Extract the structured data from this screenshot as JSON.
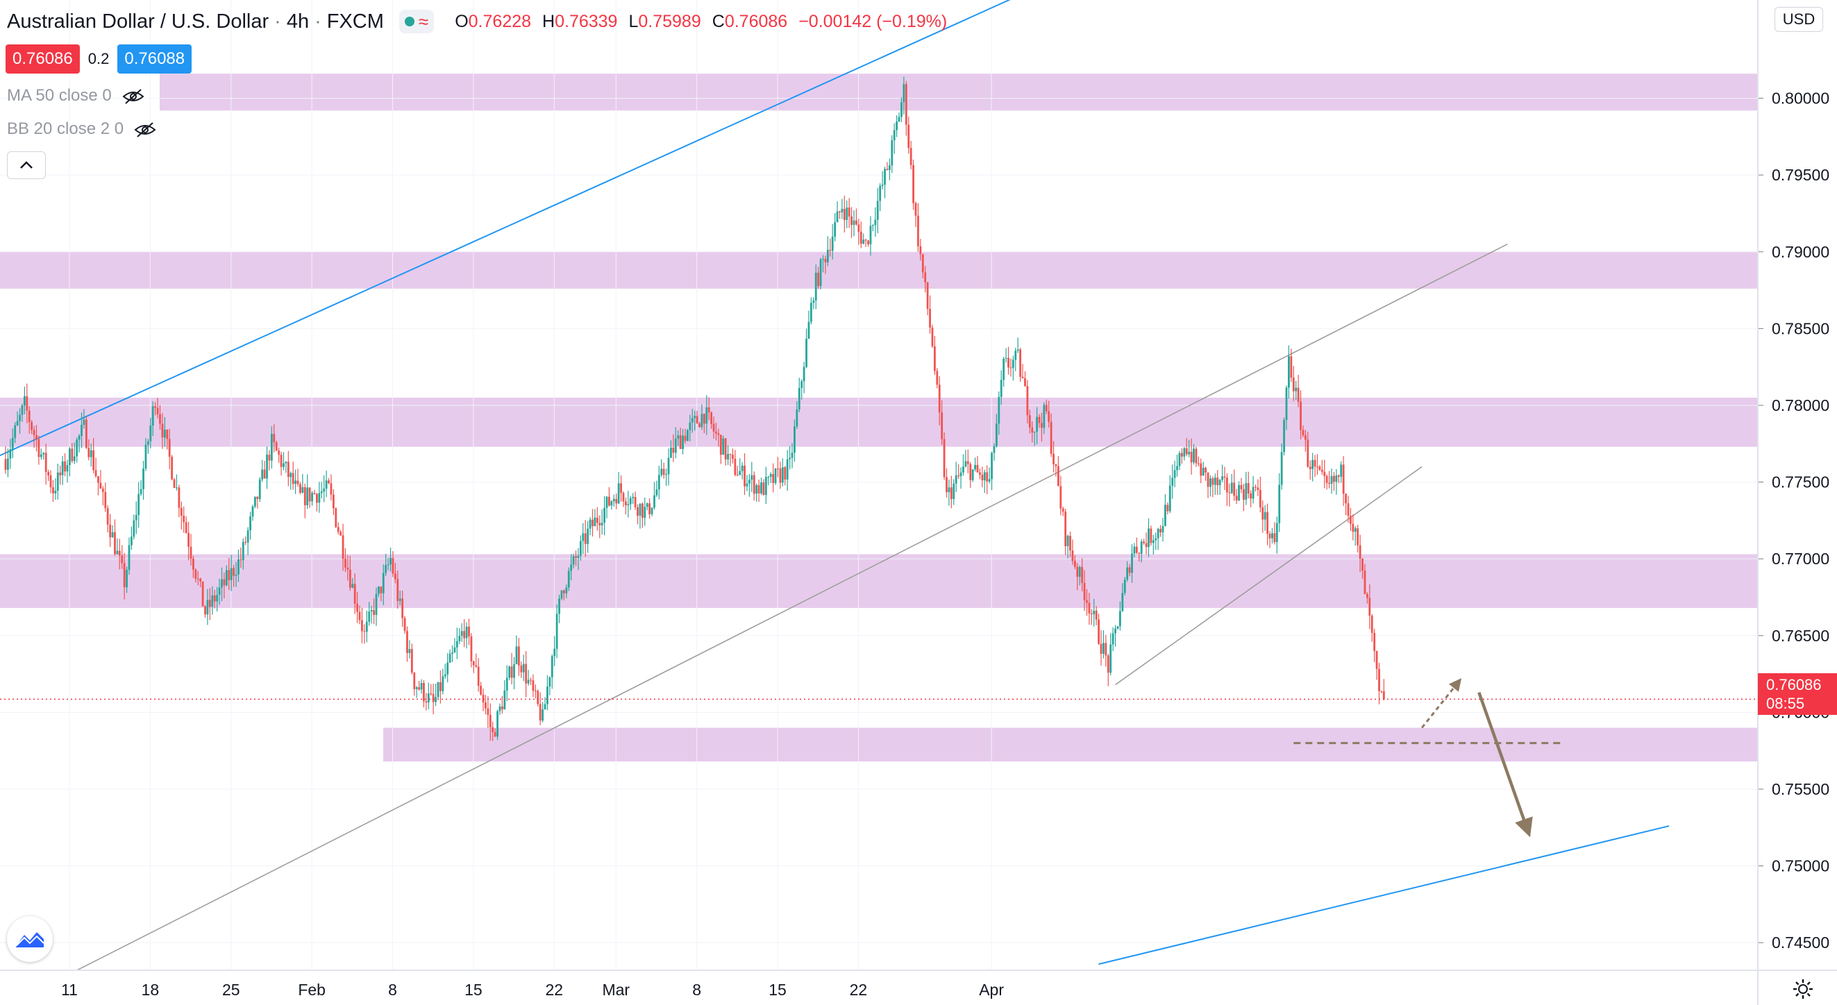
{
  "header": {
    "symbol": "Australian Dollar / U.S. Dollar",
    "interval": "4h",
    "source": "FXCM",
    "ohlc": [
      {
        "label": "O",
        "value": "0.76228"
      },
      {
        "label": "H",
        "value": "0.76339"
      },
      {
        "label": "L",
        "value": "0.75989"
      },
      {
        "label": "C",
        "value": "0.76086"
      }
    ],
    "change": "−0.00142 (−0.19%)"
  },
  "prices": {
    "sell": "0.76086",
    "spread": "0.2",
    "buy": "0.76088"
  },
  "indicators": [
    "MA 50 close 0",
    "BB 20 close 2 0"
  ],
  "currency": "USD",
  "last_price": {
    "value": "0.76086",
    "countdown": "08:55"
  },
  "colors": {
    "up": "#26a69a",
    "down": "#ef5350",
    "zone": "#e1bee7",
    "blue_line": "#2196f3",
    "channel": "#9e9e9e",
    "arrow": "#8d7a63"
  },
  "chart_data": {
    "type": "candlestick",
    "y_ticks": [
      "0.80000",
      "0.79500",
      "0.79000",
      "0.78500",
      "0.78000",
      "0.77500",
      "0.77000",
      "0.76500",
      "0.76000",
      "0.75500",
      "0.75000",
      "0.74500"
    ],
    "x_ticks": [
      "11",
      "18",
      "25",
      "Feb",
      "8",
      "15",
      "22",
      "Mar",
      "8",
      "15",
      "22",
      "Apr"
    ],
    "ylim": [
      0.7432,
      0.8064
    ],
    "anchors": [
      {
        "x": 0,
        "y": 0.7765
      },
      {
        "x": 8,
        "y": 0.78
      },
      {
        "x": 20,
        "y": 0.7745
      },
      {
        "x": 33,
        "y": 0.7785
      },
      {
        "x": 50,
        "y": 0.7685
      },
      {
        "x": 63,
        "y": 0.7805
      },
      {
        "x": 72,
        "y": 0.7745
      },
      {
        "x": 84,
        "y": 0.7665
      },
      {
        "x": 99,
        "y": 0.77
      },
      {
        "x": 112,
        "y": 0.7775
      },
      {
        "x": 124,
        "y": 0.774
      },
      {
        "x": 136,
        "y": 0.7745
      },
      {
        "x": 151,
        "y": 0.765
      },
      {
        "x": 162,
        "y": 0.77
      },
      {
        "x": 172,
        "y": 0.762
      },
      {
        "x": 180,
        "y": 0.7605
      },
      {
        "x": 193,
        "y": 0.7655
      },
      {
        "x": 205,
        "y": 0.7585
      },
      {
        "x": 215,
        "y": 0.764
      },
      {
        "x": 226,
        "y": 0.7595
      },
      {
        "x": 234,
        "y": 0.768
      },
      {
        "x": 246,
        "y": 0.772
      },
      {
        "x": 258,
        "y": 0.7745
      },
      {
        "x": 270,
        "y": 0.773
      },
      {
        "x": 282,
        "y": 0.7775
      },
      {
        "x": 294,
        "y": 0.7795
      },
      {
        "x": 306,
        "y": 0.776
      },
      {
        "x": 318,
        "y": 0.7745
      },
      {
        "x": 330,
        "y": 0.776
      },
      {
        "x": 340,
        "y": 0.7875
      },
      {
        "x": 352,
        "y": 0.793
      },
      {
        "x": 362,
        "y": 0.7905
      },
      {
        "x": 372,
        "y": 0.796
      },
      {
        "x": 378,
        "y": 0.8005
      },
      {
        "x": 383,
        "y": 0.792
      },
      {
        "x": 390,
        "y": 0.784
      },
      {
        "x": 396,
        "y": 0.774
      },
      {
        "x": 404,
        "y": 0.776
      },
      {
        "x": 414,
        "y": 0.775
      },
      {
        "x": 420,
        "y": 0.7825
      },
      {
        "x": 426,
        "y": 0.783
      },
      {
        "x": 432,
        "y": 0.7785
      },
      {
        "x": 438,
        "y": 0.7795
      },
      {
        "x": 446,
        "y": 0.7715
      },
      {
        "x": 456,
        "y": 0.767
      },
      {
        "x": 464,
        "y": 0.763
      },
      {
        "x": 474,
        "y": 0.7705
      },
      {
        "x": 486,
        "y": 0.772
      },
      {
        "x": 496,
        "y": 0.7775
      },
      {
        "x": 506,
        "y": 0.775
      },
      {
        "x": 516,
        "y": 0.7745
      },
      {
        "x": 526,
        "y": 0.7745
      },
      {
        "x": 534,
        "y": 0.7705
      },
      {
        "x": 540,
        "y": 0.783
      },
      {
        "x": 548,
        "y": 0.7765
      },
      {
        "x": 556,
        "y": 0.7745
      },
      {
        "x": 562,
        "y": 0.7755
      },
      {
        "x": 568,
        "y": 0.7715
      },
      {
        "x": 574,
        "y": 0.766
      },
      {
        "x": 578,
        "y": 0.761
      },
      {
        "x": 580,
        "y": 0.76086
      }
    ],
    "zones": [
      [
        0.7992,
        0.8016
      ],
      [
        0.7876,
        0.79
      ],
      [
        0.7773,
        0.7805
      ],
      [
        0.7668,
        0.7703
      ],
      [
        0.7568,
        0.759
      ]
    ],
    "lines": [
      {
        "kind": "blue",
        "from": [
          -10,
          0.7762
        ],
        "to": [
          448,
          0.8082
        ]
      },
      {
        "kind": "blue",
        "from": [
          460,
          0.7436
        ],
        "to": [
          700,
          0.7526
        ]
      },
      {
        "kind": "channel",
        "from": [
          30,
          0.7432
        ],
        "to": [
          632,
          0.7905
        ]
      },
      {
        "kind": "channel",
        "from": [
          467,
          0.7618
        ],
        "to": [
          596,
          0.776
        ]
      }
    ],
    "support_dash": {
      "y": 0.758,
      "from": 542,
      "to": 655
    },
    "arrow_up": {
      "from": [
        596,
        0.759
      ],
      "to": [
        612,
        0.7621
      ]
    },
    "arrow_down": {
      "from": [
        620,
        0.7613
      ],
      "to": [
        641,
        0.7521
      ]
    },
    "last": 0.76086
  }
}
